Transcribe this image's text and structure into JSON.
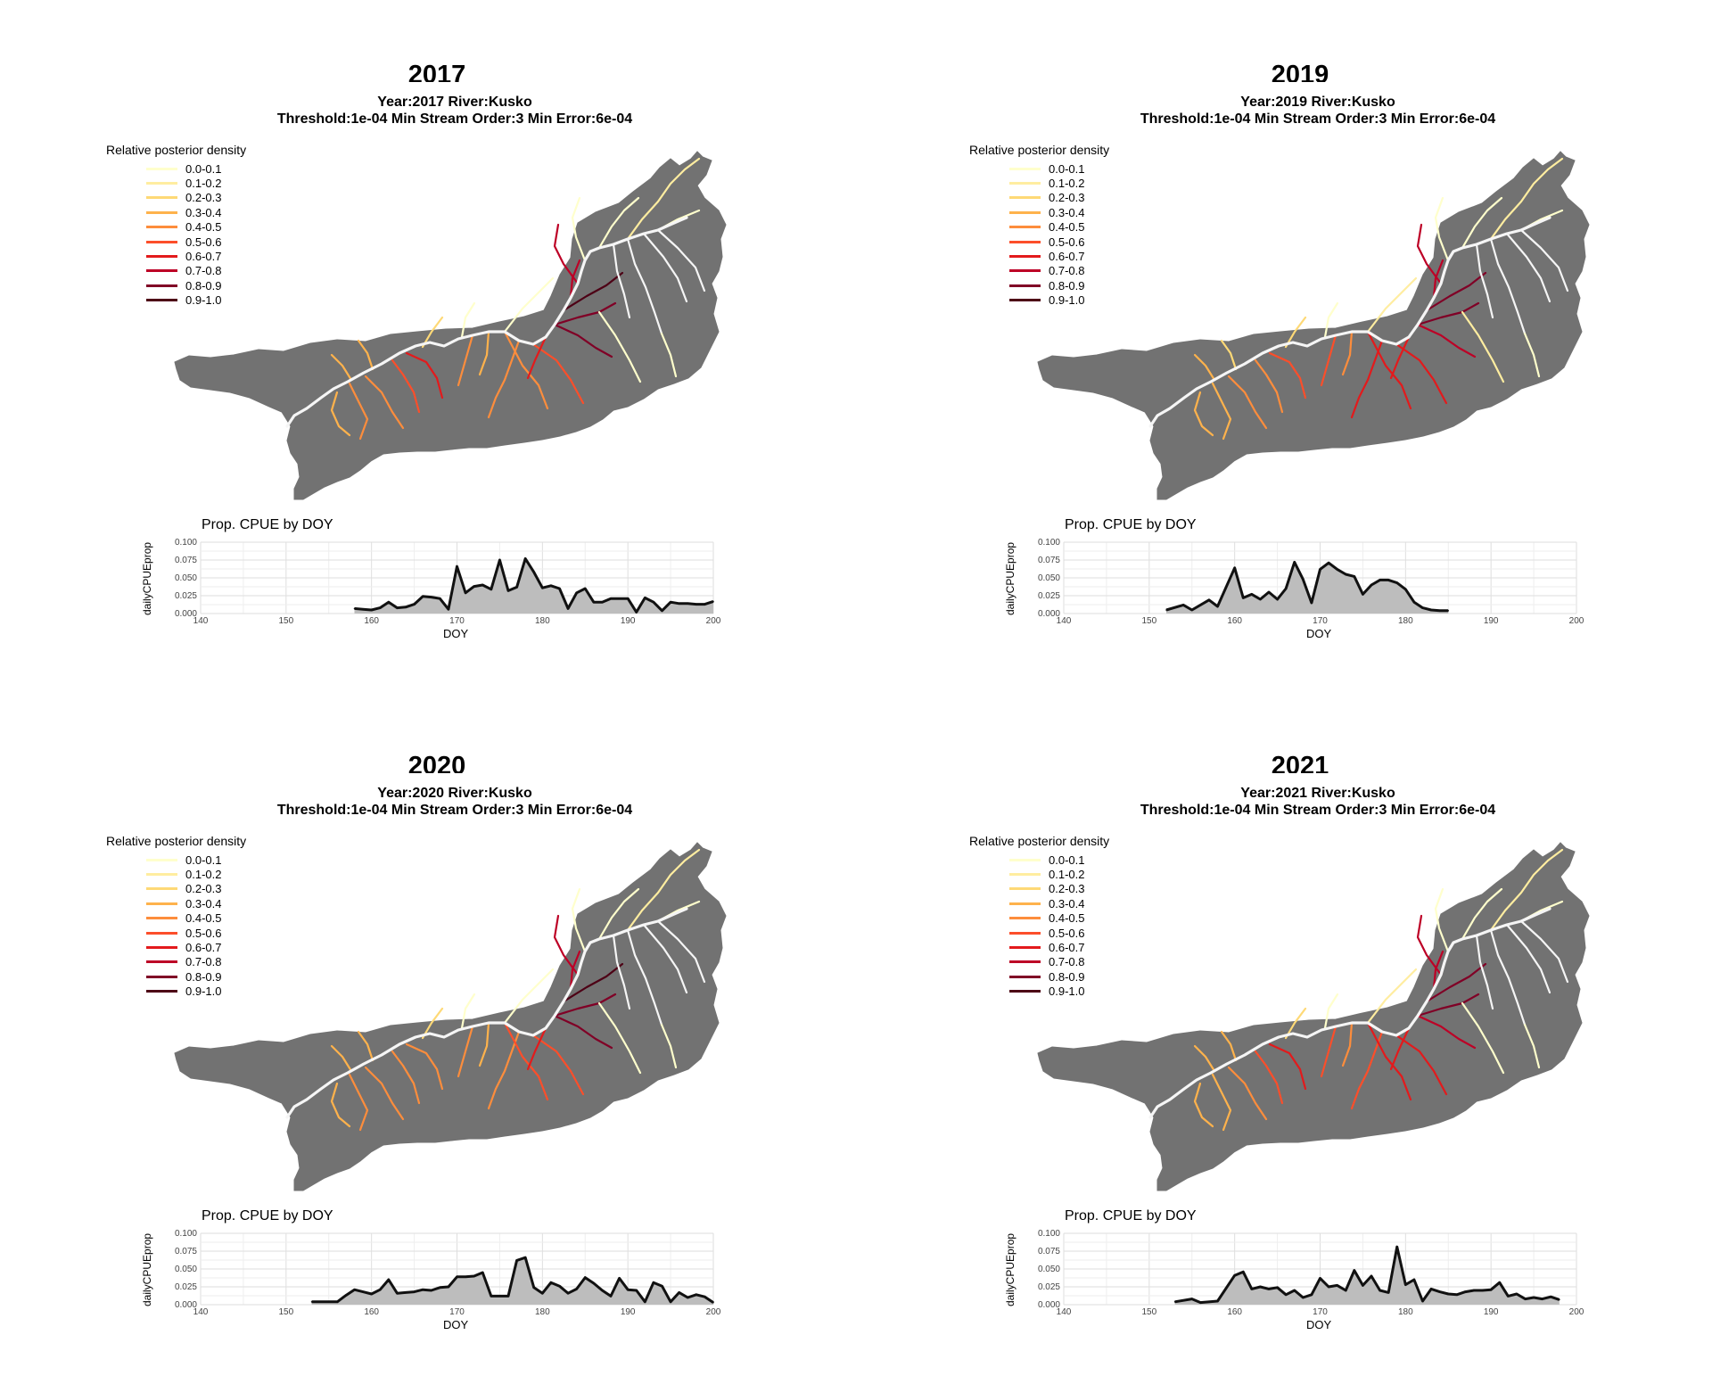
{
  "figure": {
    "legend_title": "Relative posterior density",
    "legend_labels": [
      "0.0-0.1",
      "0.1-0.2",
      "0.2-0.3",
      "0.3-0.4",
      "0.4-0.5",
      "0.5-0.6",
      "0.6-0.7",
      "0.7-0.8",
      "0.8-0.9",
      "0.9-1.0"
    ],
    "legend_colors": [
      "#ffffcc",
      "#ffeda0",
      "#fed976",
      "#feb24c",
      "#fd8d3c",
      "#fc4e2a",
      "#e31a1c",
      "#bd0026",
      "#800026",
      "#4d0015"
    ],
    "land_color": "#727272",
    "river_color": "#f5f5f5",
    "cpue_title": "Prop. CPUE by DOY",
    "cpue_xlabel": "DOY",
    "cpue_ylabel": "dailyCPUEprop",
    "cpue_xticks": [
      "140",
      "150",
      "160",
      "170",
      "180",
      "190",
      "200"
    ],
    "cpue_yticks": [
      "0.000",
      "0.025",
      "0.050",
      "0.075",
      "0.100"
    ]
  },
  "panels": [
    {
      "heading": "2017",
      "title_line1": "Year:2017 River:Kusko",
      "title_line2": "Threshold:1e-04 Min Stream Order:3 Min Error:6e-04"
    },
    {
      "heading": "2019",
      "title_line1": "Year:2019 River:Kusko",
      "title_line2": "Threshold:1e-04 Min Stream Order:3 Min Error:6e-04"
    },
    {
      "heading": "2020",
      "title_line1": "Year:2020 River:Kusko",
      "title_line2": "Threshold:1e-04 Min Stream Order:3 Min Error:6e-04"
    },
    {
      "heading": "2021",
      "title_line1": "Year:2021 River:Kusko",
      "title_line2": "Threshold:1e-04 Min Stream Order:3 Min Error:6e-04"
    }
  ],
  "chart_data": [
    {
      "type": "area",
      "title": "Prop. CPUE by DOY",
      "xlabel": "DOY",
      "ylabel": "dailyCPUEprop",
      "xlim": [
        140,
        200
      ],
      "ylim": [
        0,
        0.1
      ],
      "grid": true,
      "x": [
        158,
        159,
        160,
        161,
        162,
        163,
        164,
        165,
        166,
        167,
        168,
        169,
        170,
        171,
        172,
        173,
        174,
        175,
        176,
        177,
        178,
        179,
        180,
        181,
        182,
        183,
        184,
        185,
        186,
        187,
        188,
        189,
        190,
        191,
        192,
        193,
        194,
        195,
        196,
        197,
        198,
        199,
        200
      ],
      "y": [
        0.007,
        0.006,
        0.005,
        0.008,
        0.016,
        0.008,
        0.009,
        0.013,
        0.024,
        0.023,
        0.021,
        0.006,
        0.066,
        0.029,
        0.038,
        0.04,
        0.034,
        0.075,
        0.032,
        0.037,
        0.077,
        0.058,
        0.036,
        0.039,
        0.035,
        0.007,
        0.029,
        0.035,
        0.016,
        0.016,
        0.021,
        0.021,
        0.021,
        0.002,
        0.022,
        0.016,
        0.004,
        0.016,
        0.014,
        0.014,
        0.013,
        0.013,
        0.017
      ]
    },
    {
      "type": "area",
      "title": "Prop. CPUE by DOY",
      "xlabel": "DOY",
      "ylabel": "dailyCPUEprop",
      "xlim": [
        140,
        200
      ],
      "ylim": [
        0,
        0.1
      ],
      "grid": true,
      "x": [
        152,
        154,
        155,
        157,
        158,
        160,
        161,
        162,
        163,
        164,
        165,
        166,
        167,
        168,
        169,
        170,
        171,
        172,
        173,
        174,
        175,
        176,
        177,
        178,
        179,
        180,
        181,
        182,
        183,
        184,
        185
      ],
      "y": [
        0.005,
        0.012,
        0.005,
        0.019,
        0.01,
        0.064,
        0.022,
        0.027,
        0.02,
        0.03,
        0.02,
        0.035,
        0.072,
        0.048,
        0.015,
        0.062,
        0.071,
        0.062,
        0.055,
        0.052,
        0.027,
        0.04,
        0.047,
        0.047,
        0.043,
        0.034,
        0.016,
        0.008,
        0.005,
        0.004,
        0.004
      ]
    },
    {
      "type": "area",
      "title": "Prop. CPUE by DOY",
      "xlabel": "DOY",
      "ylabel": "dailyCPUEprop",
      "xlim": [
        140,
        200
      ],
      "ylim": [
        0,
        0.1
      ],
      "grid": true,
      "x": [
        153,
        155,
        156,
        157,
        158,
        159,
        160,
        161,
        162,
        163,
        164,
        165,
        166,
        167,
        168,
        169,
        170,
        171,
        172,
        173,
        174,
        175,
        176,
        177,
        178,
        179,
        180,
        181,
        182,
        183,
        184,
        185,
        186,
        187,
        188,
        189,
        190,
        191,
        192,
        193,
        194,
        195,
        196,
        197,
        198,
        199,
        200
      ],
      "y": [
        0.004,
        0.004,
        0.004,
        0.013,
        0.021,
        0.018,
        0.015,
        0.021,
        0.035,
        0.016,
        0.017,
        0.018,
        0.021,
        0.02,
        0.024,
        0.025,
        0.039,
        0.039,
        0.04,
        0.045,
        0.012,
        0.012,
        0.012,
        0.062,
        0.066,
        0.024,
        0.016,
        0.031,
        0.026,
        0.016,
        0.022,
        0.038,
        0.03,
        0.02,
        0.012,
        0.037,
        0.021,
        0.02,
        0.004,
        0.031,
        0.026,
        0.004,
        0.017,
        0.01,
        0.014,
        0.011,
        0.003
      ]
    },
    {
      "type": "area",
      "title": "Prop. CPUE by DOY",
      "xlabel": "DOY",
      "ylabel": "dailyCPUEprop",
      "xlim": [
        140,
        200
      ],
      "ylim": [
        0,
        0.1
      ],
      "grid": true,
      "x": [
        153,
        155,
        156,
        158,
        160,
        161,
        162,
        163,
        164,
        165,
        166,
        167,
        168,
        169,
        170,
        171,
        172,
        173,
        174,
        175,
        176,
        177,
        178,
        179,
        180,
        181,
        182,
        183,
        184,
        185,
        186,
        187,
        188,
        189,
        190,
        191,
        192,
        193,
        194,
        195,
        196,
        197,
        198
      ],
      "y": [
        0.004,
        0.008,
        0.003,
        0.005,
        0.041,
        0.046,
        0.022,
        0.025,
        0.022,
        0.024,
        0.014,
        0.02,
        0.01,
        0.014,
        0.037,
        0.025,
        0.027,
        0.02,
        0.048,
        0.027,
        0.04,
        0.02,
        0.017,
        0.081,
        0.028,
        0.035,
        0.005,
        0.022,
        0.018,
        0.015,
        0.014,
        0.018,
        0.02,
        0.02,
        0.021,
        0.031,
        0.012,
        0.015,
        0.008,
        0.01,
        0.008,
        0.011,
        0.007
      ]
    }
  ]
}
